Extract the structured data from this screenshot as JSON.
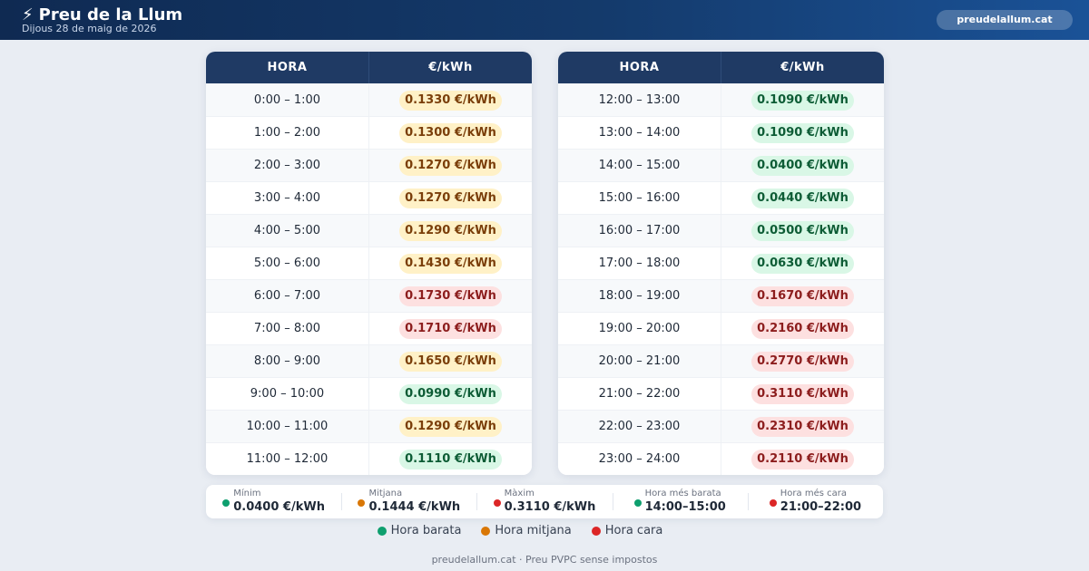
{
  "header": {
    "bolt": "⚡",
    "title": "Preu de la Llum",
    "date": "Dijous 28 de maig de 2026",
    "site_button": "preudelallum.cat"
  },
  "table": {
    "col_hour": "HORA",
    "col_price": "€/kWh",
    "left_rows": [
      {
        "hour": "0:00 – 1:00",
        "price": "0.1330 €/kWh",
        "level": "mid"
      },
      {
        "hour": "1:00 – 2:00",
        "price": "0.1300 €/kWh",
        "level": "mid"
      },
      {
        "hour": "2:00 – 3:00",
        "price": "0.1270 €/kWh",
        "level": "mid"
      },
      {
        "hour": "3:00 – 4:00",
        "price": "0.1270 €/kWh",
        "level": "mid"
      },
      {
        "hour": "4:00 – 5:00",
        "price": "0.1290 €/kWh",
        "level": "mid"
      },
      {
        "hour": "5:00 – 6:00",
        "price": "0.1430 €/kWh",
        "level": "mid"
      },
      {
        "hour": "6:00 – 7:00",
        "price": "0.1730 €/kWh",
        "level": "high"
      },
      {
        "hour": "7:00 – 8:00",
        "price": "0.1710 €/kWh",
        "level": "high"
      },
      {
        "hour": "8:00 – 9:00",
        "price": "0.1650 €/kWh",
        "level": "mid"
      },
      {
        "hour": "9:00 – 10:00",
        "price": "0.0990 €/kWh",
        "level": "low"
      },
      {
        "hour": "10:00 – 11:00",
        "price": "0.1290 €/kWh",
        "level": "mid"
      },
      {
        "hour": "11:00 – 12:00",
        "price": "0.1110 €/kWh",
        "level": "low"
      }
    ],
    "right_rows": [
      {
        "hour": "12:00 – 13:00",
        "price": "0.1090 €/kWh",
        "level": "low"
      },
      {
        "hour": "13:00 – 14:00",
        "price": "0.1090 €/kWh",
        "level": "low"
      },
      {
        "hour": "14:00 – 15:00",
        "price": "0.0400 €/kWh",
        "level": "low"
      },
      {
        "hour": "15:00 – 16:00",
        "price": "0.0440 €/kWh",
        "level": "low"
      },
      {
        "hour": "16:00 – 17:00",
        "price": "0.0500 €/kWh",
        "level": "low"
      },
      {
        "hour": "17:00 – 18:00",
        "price": "0.0630 €/kWh",
        "level": "low"
      },
      {
        "hour": "18:00 – 19:00",
        "price": "0.1670 €/kWh",
        "level": "high"
      },
      {
        "hour": "19:00 – 20:00",
        "price": "0.2160 €/kWh",
        "level": "high"
      },
      {
        "hour": "20:00 – 21:00",
        "price": "0.2770 €/kWh",
        "level": "high"
      },
      {
        "hour": "21:00 – 22:00",
        "price": "0.3110 €/kWh",
        "level": "high"
      },
      {
        "hour": "22:00 – 23:00",
        "price": "0.2310 €/kWh",
        "level": "high"
      },
      {
        "hour": "23:00 – 24:00",
        "price": "0.2110 €/kWh",
        "level": "high"
      }
    ]
  },
  "stats": [
    {
      "label": "Mínim",
      "value": "0.0400 €/kWh",
      "color": "#0e9f6e"
    },
    {
      "label": "Mitjana",
      "value": "0.1444 €/kWh",
      "color": "#d97706"
    },
    {
      "label": "Màxim",
      "value": "0.3110 €/kWh",
      "color": "#dc2626"
    },
    {
      "label": "Hora més barata",
      "value": "14:00–15:00",
      "color": "#0e9f6e"
    },
    {
      "label": "Hora més cara",
      "value": "21:00–22:00",
      "color": "#dc2626"
    }
  ],
  "legend": [
    {
      "label": "Hora barata",
      "color": "#0e9f6e"
    },
    {
      "label": "Hora mitjana",
      "color": "#d97706"
    },
    {
      "label": "Hora cara",
      "color": "#dc2626"
    }
  ],
  "footer": "preudelallum.cat · Preu PVPC sense impostos",
  "colors": {
    "header_start": "#0f2a52",
    "header_end": "#1a5297",
    "table_header": "#1f3a64",
    "cheap": "#0e9f6e",
    "medium": "#d97706",
    "expensive": "#dc2626"
  }
}
